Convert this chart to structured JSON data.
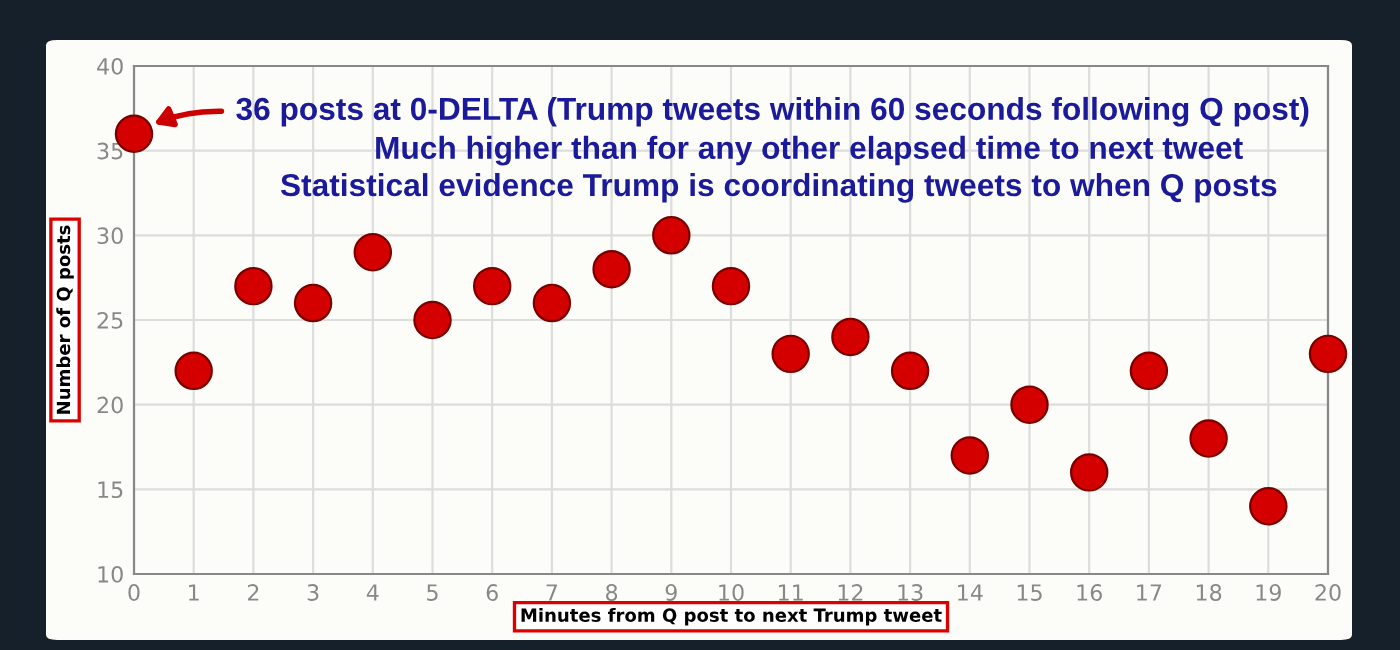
{
  "chart_data": {
    "type": "scatter",
    "x": [
      0,
      1,
      2,
      3,
      4,
      5,
      6,
      7,
      8,
      9,
      10,
      11,
      12,
      13,
      14,
      15,
      16,
      17,
      18,
      19,
      20
    ],
    "series": [
      {
        "color": "#d40000",
        "values": [
          36,
          22,
          27,
          26,
          29,
          25,
          27,
          26,
          28,
          30,
          27,
          23,
          24,
          22,
          17,
          20,
          16,
          22,
          18,
          14,
          23
        ]
      }
    ],
    "xlim": [
      0,
      20
    ],
    "xticks": [
      0,
      1,
      2,
      3,
      4,
      5,
      6,
      7,
      8,
      9,
      10,
      11,
      12,
      13,
      14,
      15,
      16,
      17,
      18,
      19,
      20
    ],
    "ylim": [
      10,
      40
    ],
    "yticks": [
      10,
      15,
      20,
      25,
      30,
      35,
      40
    ],
    "xlabel": "Minutes from Q post to next Trump tweet",
    "ylabel": "Number of Q posts",
    "annotations": [
      "36 posts at 0-DELTA (Trump tweets within 60 seconds following Q post)",
      "Much higher than for any other elapsed time to next tweet",
      "Statistical evidence Trump is coordinating tweets to when Q posts"
    ],
    "grid": true,
    "marker": "circle",
    "legend": false
  }
}
